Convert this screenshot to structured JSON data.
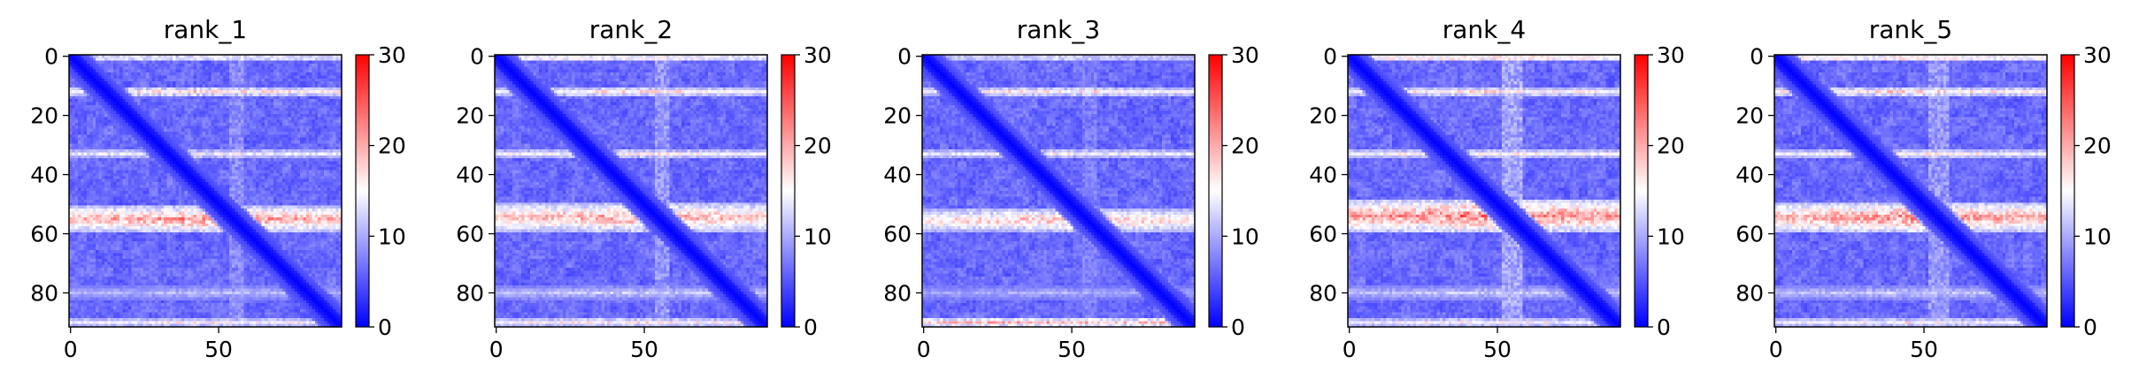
{
  "chart_data": [
    {
      "type": "heatmap",
      "title": "rank_1",
      "n": 92,
      "x_ticks": [
        0,
        50
      ],
      "y_ticks": [
        0,
        20,
        40,
        60,
        80
      ],
      "colorbar": {
        "min": 0,
        "max": 30,
        "ticks": [
          0,
          10,
          20,
          30
        ],
        "cmap": "bwr",
        "colors": [
          "#0000ff",
          "#ffffff",
          "#ff0000"
        ]
      },
      "features": {
        "top_band": {
          "rows": [
            0,
            1
          ],
          "value": 16
        },
        "band_12": {
          "rows": [
            11,
            13
          ],
          "value": 17
        },
        "band_33": {
          "rows": [
            32,
            34
          ],
          "value": 14
        },
        "band_55": {
          "rows": [
            51,
            59
          ],
          "value": 22
        },
        "band_80": {
          "rows": [
            78,
            82
          ],
          "value": 9
        },
        "bottom_band": {
          "rows": [
            89,
            91
          ],
          "value": 15
        },
        "column_stripe": {
          "cols": [
            54,
            58
          ],
          "value": 10
        }
      }
    },
    {
      "type": "heatmap",
      "title": "rank_2",
      "n": 92,
      "x_ticks": [
        0,
        50
      ],
      "y_ticks": [
        0,
        20,
        40,
        60,
        80
      ],
      "colorbar": {
        "min": 0,
        "max": 30,
        "ticks": [
          0,
          10,
          20,
          30
        ],
        "cmap": "bwr",
        "colors": [
          "#0000ff",
          "#ffffff",
          "#ff0000"
        ]
      },
      "features": {
        "top_band": {
          "rows": [
            0,
            1
          ],
          "value": 19
        },
        "band_12": {
          "rows": [
            11,
            13
          ],
          "value": 16
        },
        "band_33": {
          "rows": [
            32,
            34
          ],
          "value": 15
        },
        "band_55": {
          "rows": [
            50,
            59
          ],
          "value": 21
        },
        "band_80": {
          "rows": [
            78,
            82
          ],
          "value": 10
        },
        "bottom_band": {
          "rows": [
            89,
            91
          ],
          "value": 16
        },
        "column_stripe": {
          "cols": [
            54,
            58
          ],
          "value": 11
        }
      }
    },
    {
      "type": "heatmap",
      "title": "rank_3",
      "n": 92,
      "x_ticks": [
        0,
        50
      ],
      "y_ticks": [
        0,
        20,
        40,
        60,
        80
      ],
      "colorbar": {
        "min": 0,
        "max": 30,
        "ticks": [
          0,
          10,
          20,
          30
        ],
        "cmap": "bwr",
        "colors": [
          "#0000ff",
          "#ffffff",
          "#ff0000"
        ]
      },
      "features": {
        "top_band": {
          "rows": [
            0,
            1
          ],
          "value": 14
        },
        "band_12": {
          "rows": [
            11,
            13
          ],
          "value": 16
        },
        "band_33": {
          "rows": [
            32,
            34
          ],
          "value": 14
        },
        "band_55": {
          "rows": [
            52,
            59
          ],
          "value": 19
        },
        "band_80": {
          "rows": [
            78,
            82
          ],
          "value": 8
        },
        "bottom_band": {
          "rows": [
            89,
            91
          ],
          "value": 20
        },
        "column_stripe": {
          "cols": [
            54,
            58
          ],
          "value": 9
        }
      }
    },
    {
      "type": "heatmap",
      "title": "rank_4",
      "n": 92,
      "x_ticks": [
        0,
        50
      ],
      "y_ticks": [
        0,
        20,
        40,
        60,
        80
      ],
      "colorbar": {
        "min": 0,
        "max": 30,
        "ticks": [
          0,
          10,
          20,
          30
        ],
        "cmap": "bwr",
        "colors": [
          "#0000ff",
          "#ffffff",
          "#ff0000"
        ]
      },
      "features": {
        "top_band": {
          "rows": [
            0,
            1
          ],
          "value": 21
        },
        "band_12": {
          "rows": [
            11,
            13
          ],
          "value": 16
        },
        "band_33": {
          "rows": [
            32,
            34
          ],
          "value": 15
        },
        "band_55": {
          "rows": [
            49,
            59
          ],
          "value": 24
        },
        "band_80": {
          "rows": [
            78,
            82
          ],
          "value": 10
        },
        "bottom_band": {
          "rows": [
            89,
            91
          ],
          "value": 15
        },
        "column_stripe": {
          "cols": [
            52,
            58
          ],
          "value": 12
        }
      }
    },
    {
      "type": "heatmap",
      "title": "rank_5",
      "n": 92,
      "x_ticks": [
        0,
        50
      ],
      "y_ticks": [
        0,
        20,
        40,
        60,
        80
      ],
      "colorbar": {
        "min": 0,
        "max": 30,
        "ticks": [
          0,
          10,
          20,
          30
        ],
        "cmap": "bwr",
        "colors": [
          "#0000ff",
          "#ffffff",
          "#ff0000"
        ]
      },
      "features": {
        "top_band": {
          "rows": [
            0,
            1
          ],
          "value": 20
        },
        "band_12": {
          "rows": [
            11,
            13
          ],
          "value": 17
        },
        "band_33": {
          "rows": [
            32,
            34
          ],
          "value": 15
        },
        "band_55": {
          "rows": [
            50,
            59
          ],
          "value": 23
        },
        "band_80": {
          "rows": [
            78,
            82
          ],
          "value": 10
        },
        "bottom_band": {
          "rows": [
            89,
            91
          ],
          "value": 15
        },
        "column_stripe": {
          "cols": [
            52,
            58
          ],
          "value": 11
        }
      }
    }
  ]
}
